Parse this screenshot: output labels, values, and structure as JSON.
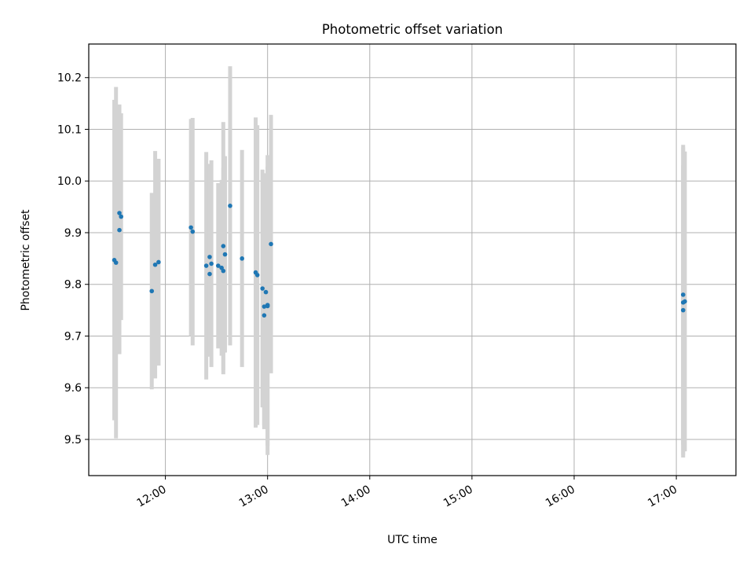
{
  "chart_data": {
    "type": "scatter",
    "title": "Photometric offset variation",
    "xlabel": "UTC time",
    "ylabel": "Photometric offset",
    "x_tick_labels": [
      "12:00",
      "13:00",
      "14:00",
      "15:00",
      "16:00",
      "17:00"
    ],
    "y_tick_labels": [
      "9.5",
      "9.6",
      "9.7",
      "9.8",
      "9.9",
      "10.0",
      "10.1",
      "10.2"
    ],
    "xlim": [
      "11:15",
      "17:35"
    ],
    "ylim": [
      9.43,
      10.265
    ],
    "grid": true,
    "colors": {
      "point": "#1f77b4",
      "errorbar": "#d3d3d3",
      "grid": "#b0b0b0"
    },
    "series": [
      {
        "points": [
          {
            "x": "11:30",
            "y": 9.847,
            "err": 0.31
          },
          {
            "x": "11:31",
            "y": 9.842,
            "err": 0.34
          },
          {
            "x": "11:33",
            "y": 9.938,
            "err": 0.21
          },
          {
            "x": "11:33",
            "y": 9.905,
            "err": 0.24
          },
          {
            "x": "11:34",
            "y": 9.931,
            "err": 0.2
          },
          {
            "x": "11:52",
            "y": 9.787,
            "err": 0.19
          },
          {
            "x": "11:54",
            "y": 9.838,
            "err": 0.22
          },
          {
            "x": "11:56",
            "y": 9.843,
            "err": 0.2
          },
          {
            "x": "12:15",
            "y": 9.91,
            "err": 0.21
          },
          {
            "x": "12:16",
            "y": 9.902,
            "err": 0.22
          },
          {
            "x": "12:24",
            "y": 9.836,
            "err": 0.22
          },
          {
            "x": "12:26",
            "y": 9.82,
            "err": 0.16
          },
          {
            "x": "12:26",
            "y": 9.853,
            "err": 0.18
          },
          {
            "x": "12:27",
            "y": 9.84,
            "err": 0.2
          },
          {
            "x": "12:31",
            "y": 9.836,
            "err": 0.16
          },
          {
            "x": "12:33",
            "y": 9.832,
            "err": 0.17
          },
          {
            "x": "12:34",
            "y": 9.826,
            "err": 0.2
          },
          {
            "x": "12:34",
            "y": 9.874,
            "err": 0.24
          },
          {
            "x": "12:35",
            "y": 9.858,
            "err": 0.19
          },
          {
            "x": "12:38",
            "y": 9.952,
            "err": 0.27
          },
          {
            "x": "12:45",
            "y": 9.85,
            "err": 0.21
          },
          {
            "x": "12:53",
            "y": 9.823,
            "err": 0.3
          },
          {
            "x": "12:54",
            "y": 9.818,
            "err": 0.29
          },
          {
            "x": "12:57",
            "y": 9.792,
            "err": 0.23
          },
          {
            "x": "12:58",
            "y": 9.74,
            "err": 0.22
          },
          {
            "x": "12:58",
            "y": 9.757,
            "err": 0.23
          },
          {
            "x": "12:59",
            "y": 9.785,
            "err": 0.23
          },
          {
            "x": "13:00",
            "y": 9.758,
            "err": 0.27
          },
          {
            "x": "13:00",
            "y": 9.76,
            "err": 0.29
          },
          {
            "x": "13:02",
            "y": 9.878,
            "err": 0.25
          },
          {
            "x": "17:04",
            "y": 9.75,
            "err": 0.28
          },
          {
            "x": "17:04",
            "y": 9.78,
            "err": 0.29
          },
          {
            "x": "17:04",
            "y": 9.765,
            "err": 0.3
          },
          {
            "x": "17:05",
            "y": 9.767,
            "err": 0.29
          }
        ]
      }
    ]
  }
}
